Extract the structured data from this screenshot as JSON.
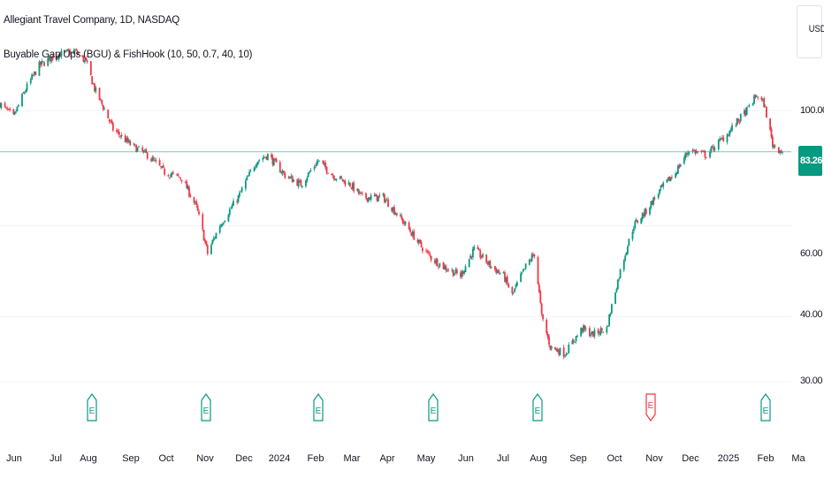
{
  "header": {
    "title": "Allegiant Travel Company, 1D, NASDAQ",
    "indicator": "Buyable Gap Ups (BGU) & FishHook (10, 50, 0.7, 40, 10)"
  },
  "price_scale": {
    "currency": "USD",
    "last_price": "83.26",
    "ticks": [
      "100.00",
      "60.00",
      "40.00",
      "30.00"
    ]
  },
  "time_axis": {
    "labels": [
      "Jun",
      "Jul",
      "Aug",
      "Sep",
      "Oct",
      "Nov",
      "Dec",
      "2024",
      "Feb",
      "Mar",
      "Apr",
      "May",
      "Jun",
      "Jul",
      "Aug",
      "Sep",
      "Oct",
      "Nov",
      "Dec",
      "2025",
      "Feb",
      "Ma"
    ]
  },
  "colors": {
    "up": "#089981",
    "down": "#f23645",
    "price_line": "#089981",
    "grid": "#f0f3fa",
    "earnings_up": "#089981",
    "earnings_down": "#f23645"
  },
  "earnings_markers": [
    {
      "label": "E",
      "type": "positive",
      "month": "Aug 2023"
    },
    {
      "label": "E",
      "type": "positive",
      "month": "Nov 2023"
    },
    {
      "label": "E",
      "type": "positive",
      "month": "Feb 2024"
    },
    {
      "label": "E",
      "type": "positive",
      "month": "May 2024"
    },
    {
      "label": "E",
      "type": "positive",
      "month": "Aug 2024"
    },
    {
      "label": "E",
      "type": "negative",
      "month": "Nov 2024"
    },
    {
      "label": "E",
      "type": "positive",
      "month": "Feb 2025"
    }
  ],
  "chart_data": {
    "type": "candlestick",
    "title": "Allegiant Travel Company, 1D, NASDAQ",
    "y_axis_scale": "log",
    "y_ticks": [
      100,
      60,
      40,
      30
    ],
    "last_price": 83.26,
    "x_labels": [
      "Jun",
      "Jul",
      "Aug",
      "Sep",
      "Oct",
      "Nov",
      "Dec",
      "2024",
      "Feb",
      "Mar",
      "Apr",
      "May",
      "Jun",
      "Jul",
      "Aug",
      "Sep",
      "Oct",
      "Nov",
      "Dec",
      "2025",
      "Feb",
      "Ma"
    ],
    "close_path": [
      [
        "2023-05-25",
        103
      ],
      [
        "2023-06-05",
        97
      ],
      [
        "2023-06-15",
        110
      ],
      [
        "2023-06-26",
        122
      ],
      [
        "2023-07-10",
        128
      ],
      [
        "2023-07-25",
        130
      ],
      [
        "2023-08-03",
        124
      ],
      [
        "2023-08-10",
        110
      ],
      [
        "2023-08-25",
        92
      ],
      [
        "2023-09-08",
        86
      ],
      [
        "2023-09-22",
        82
      ],
      [
        "2023-10-06",
        76
      ],
      [
        "2023-10-20",
        74
      ],
      [
        "2023-11-01",
        65
      ],
      [
        "2023-11-10",
        53
      ],
      [
        "2023-11-20",
        60
      ],
      [
        "2023-12-05",
        68
      ],
      [
        "2023-12-20",
        80
      ],
      [
        "2023-12-29",
        82
      ],
      [
        "2024-01-12",
        75
      ],
      [
        "2024-01-25",
        72
      ],
      [
        "2024-02-08",
        80
      ],
      [
        "2024-02-20",
        75
      ],
      [
        "2024-03-05",
        72
      ],
      [
        "2024-03-15",
        68
      ],
      [
        "2024-04-01",
        68
      ],
      [
        "2024-04-15",
        62
      ],
      [
        "2024-05-01",
        55
      ],
      [
        "2024-05-10",
        52
      ],
      [
        "2024-05-20",
        50
      ],
      [
        "2024-06-03",
        48
      ],
      [
        "2024-06-14",
        54
      ],
      [
        "2024-06-28",
        50
      ],
      [
        "2024-07-08",
        48
      ],
      [
        "2024-07-15",
        44
      ],
      [
        "2024-07-26",
        50
      ],
      [
        "2024-08-02",
        53
      ],
      [
        "2024-08-08",
        40
      ],
      [
        "2024-08-15",
        35
      ],
      [
        "2024-08-27",
        34
      ],
      [
        "2024-09-10",
        38
      ],
      [
        "2024-09-18",
        37
      ],
      [
        "2024-09-30",
        38
      ],
      [
        "2024-10-08",
        46
      ],
      [
        "2024-10-22",
        60
      ],
      [
        "2024-11-01",
        64
      ],
      [
        "2024-11-12",
        70
      ],
      [
        "2024-11-25",
        76
      ],
      [
        "2024-12-06",
        84
      ],
      [
        "2024-12-20",
        82
      ],
      [
        "2025-01-06",
        90
      ],
      [
        "2025-01-22",
        100
      ],
      [
        "2025-01-30",
        107
      ],
      [
        "2025-02-05",
        103
      ],
      [
        "2025-02-12",
        86
      ],
      [
        "2025-02-20",
        83.26
      ]
    ]
  }
}
